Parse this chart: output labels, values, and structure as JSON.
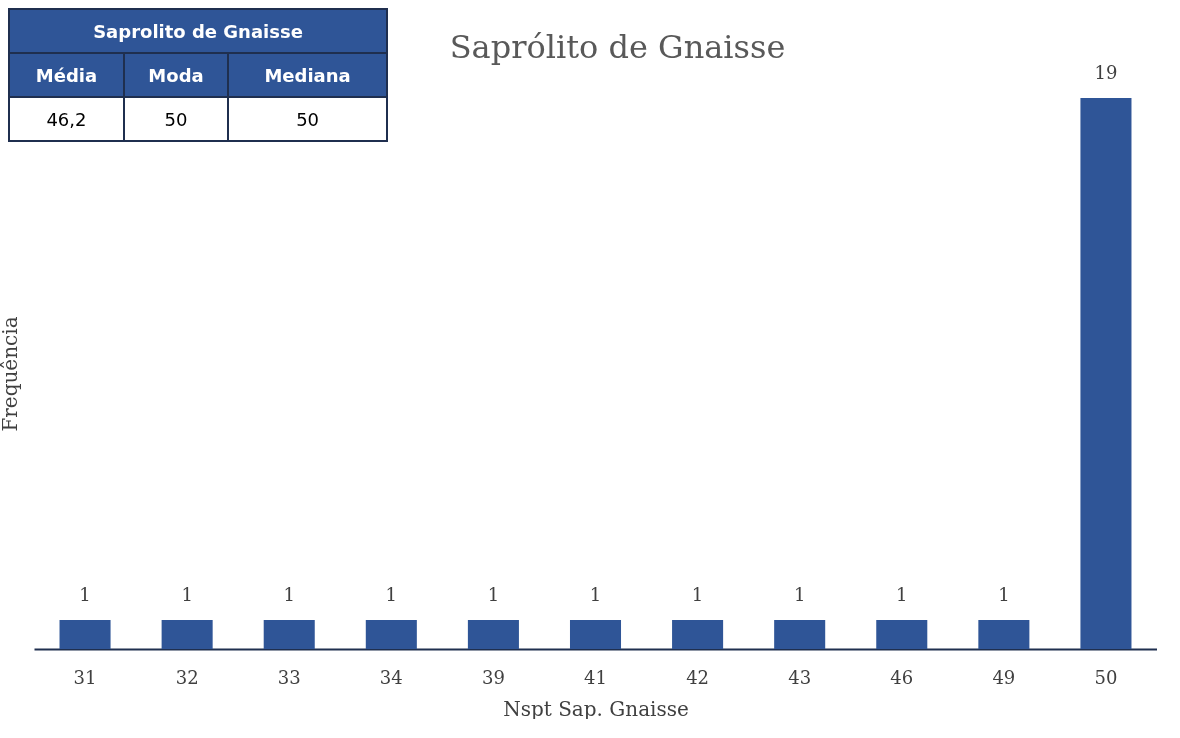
{
  "chart_data": {
    "type": "bar",
    "title": "Saprólito de Gnaisse",
    "xlabel": "Nspt Sap. Gnaisse",
    "ylabel": "Frequência",
    "categories": [
      "31",
      "32",
      "33",
      "34",
      "39",
      "41",
      "42",
      "43",
      "46",
      "49",
      "50"
    ],
    "values": [
      1,
      1,
      1,
      1,
      1,
      1,
      1,
      1,
      1,
      1,
      19
    ],
    "color": "#2f5597",
    "data_labels": true,
    "grid": false,
    "annotations": [
      "Saprolito de Gnaisse",
      "Média",
      "Moda",
      "Mediana",
      "46,2",
      "50",
      "50"
    ]
  }
}
